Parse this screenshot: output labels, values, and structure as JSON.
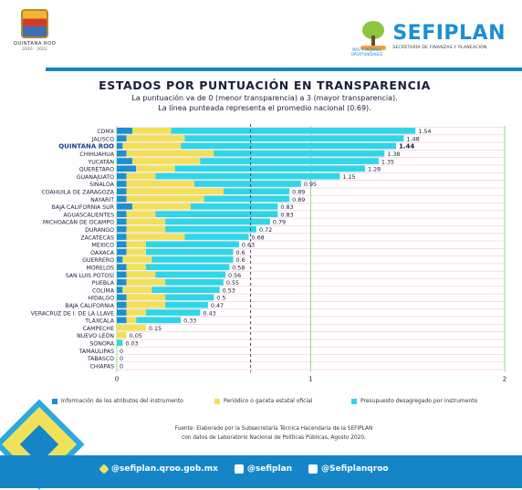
{
  "header": {
    "left_logo_line1": "QUINTANA ROO",
    "left_logo_line2": "2016 - 2022",
    "brand_name": "SEFIPLAN",
    "brand_sub": "SECRETARÍA DE FINANZAS Y PLANEACIÓN",
    "tagline": "MÁS Y MEJORES OPORTUNIDADES"
  },
  "colors": {
    "info": "#1b8fd1",
    "periodico": "#f1e15a",
    "presupuesto": "#2fd6e8",
    "highlight_label": "#1a3a8c",
    "footer": "#1585c8"
  },
  "chart_data": {
    "type": "bar",
    "orientation": "horizontal",
    "stacked": true,
    "title": "ESTADOS POR PUNTUACIÓN EN TRANSPARENCIA",
    "subtitle_line1": "La puntuación va de 0 (menor transparencia) a 3 (mayor transparencia).",
    "subtitle_line2": "La línea punteada representa el promedio nacional (0.69).",
    "xlim": [
      0,
      2
    ],
    "xticks": [
      "0",
      "1",
      "2"
    ],
    "average": 0.69,
    "highlight": "QUINTANA ROO",
    "legend": [
      "Información de los atributos del instrumento",
      "Periódico o gaceta estatal oficial",
      "Presupuesto desagregado por instrumento"
    ],
    "categories": [
      "CDMX",
      "JALISCO",
      "QUINTANA ROO",
      "CHIHUAHUA",
      "YUCATÁN",
      "QUERÉTARO",
      "GUANAJUATO",
      "SINALOA",
      "COAHUILA DE ZARAGOZA",
      "NAYARIT",
      "BAJA CALIFORNIA SUR",
      "AGUASCALIENTES",
      "MICHOACÁN DE OCAMPO",
      "DURANGO",
      "ZACATECAS",
      "MÉXICO",
      "OAXACA",
      "GUERRERO",
      "MORELOS",
      "SAN LUIS POTOSÍ",
      "PUEBLA",
      "COLIMA",
      "HIDALGO",
      "BAJA CALIFORNIA",
      "VERACRUZ DE I. DE LA LLAVE",
      "TLAXCALA",
      "CAMPECHE",
      "NUEVO LEÓN",
      "SONORA",
      "TAMAULIPAS",
      "TABASCO",
      "CHIAPAS"
    ],
    "totals": [
      1.54,
      1.48,
      1.44,
      1.38,
      1.35,
      1.28,
      1.15,
      0.95,
      0.89,
      0.89,
      0.83,
      0.83,
      0.79,
      0.72,
      0.68,
      0.63,
      0.6,
      0.6,
      0.58,
      0.56,
      0.55,
      0.53,
      0.5,
      0.47,
      0.43,
      0.33,
      0.15,
      0.05,
      0.03,
      0,
      0,
      0
    ],
    "total_labels": [
      "1.54",
      "1.48",
      "1.44",
      "1.38",
      "1.35",
      "1.28",
      "1.15",
      "0.95",
      "0.89",
      "0.89",
      "0.83",
      "0.83",
      "0.79",
      "0.72",
      "0.68",
      "0.63",
      "0.6",
      "0.6",
      "0.58",
      "0.56",
      "0.55",
      "0.53",
      "0.5",
      "0.47",
      "0.43",
      "0.33",
      "0.15",
      "0.05",
      "0.03",
      "0",
      "0",
      "0"
    ],
    "series": [
      {
        "name": "Información de los atributos del instrumento",
        "values": [
          0.08,
          0.05,
          0.03,
          0.05,
          0.08,
          0.1,
          0.05,
          0.05,
          0.05,
          0.05,
          0.08,
          0.05,
          0.05,
          0.05,
          0.05,
          0.05,
          0.05,
          0.03,
          0.05,
          0.05,
          0.05,
          0.03,
          0.05,
          0.05,
          0.05,
          0.05,
          0,
          0,
          0,
          0,
          0,
          0
        ]
      },
      {
        "name": "Periódico o gaceta estatal oficial",
        "values": [
          0.2,
          0.3,
          0.3,
          0.45,
          0.35,
          0.2,
          0.15,
          0.35,
          0.5,
          0.4,
          0.3,
          0.15,
          0.2,
          0.2,
          0.3,
          0.1,
          0.1,
          0.15,
          0.1,
          0.15,
          0.2,
          0.15,
          0.2,
          0.2,
          0.1,
          0.05,
          0.15,
          0.05,
          0,
          0,
          0,
          0
        ]
      },
      {
        "name": "Presupuesto desagregado por instrumento",
        "values": [
          1.26,
          1.13,
          1.11,
          0.88,
          0.92,
          0.98,
          0.95,
          0.55,
          0.34,
          0.44,
          0.45,
          0.63,
          0.54,
          0.47,
          0.33,
          0.48,
          0.45,
          0.42,
          0.43,
          0.36,
          0.3,
          0.35,
          0.25,
          0.22,
          0.28,
          0.23,
          0,
          0,
          0.03,
          0,
          0,
          0
        ]
      }
    ]
  },
  "source": {
    "line1": "Fuente: Elaborado por la Subsecretaría Técnica Hacendaria de la SEFIPLAN",
    "line2": "con datos de Laboratorio Nacional de Políticas Públicas, Agosto 2020."
  },
  "footer": {
    "web": "@sefiplan.qroo.gob.mx",
    "facebook": "@sefiplan",
    "twitter": "@Sefiplanqroo"
  }
}
